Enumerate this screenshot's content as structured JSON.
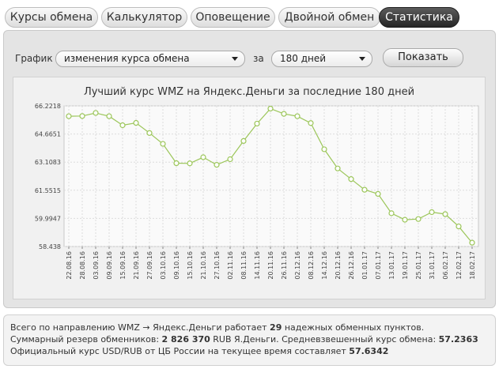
{
  "tabs": [
    {
      "label": "Курсы обмена",
      "active": false
    },
    {
      "label": "Калькулятор",
      "active": false
    },
    {
      "label": "Оповещение",
      "active": false
    },
    {
      "label": "Двойной обмен",
      "active": false
    },
    {
      "label": "Статистика",
      "active": true
    }
  ],
  "filters": {
    "graph_label": "График",
    "graph_type": "изменения курса обмена",
    "period_label": "за",
    "period": "180 дней",
    "show_button": "Показать"
  },
  "chart_data": {
    "type": "line",
    "title": "Лучший курс WMZ на Яндекс.Деньги за последние 180 дней",
    "ylim": [
      58.438,
      66.2218
    ],
    "yticks": [
      66.2218,
      64.6651,
      63.1083,
      61.5515,
      59.9947,
      58.438
    ],
    "ytick_labels": [
      "66.2218",
      "64.6651",
      "63.1083",
      "61.5515",
      "59.9947",
      "58.438"
    ],
    "xtick_labels": [
      "22.08.16",
      "28.08.16",
      "03.09.16",
      "09.09.16",
      "15.09.16",
      "21.09.16",
      "27.09.16",
      "03.10.16",
      "09.10.16",
      "15.10.16",
      "21.10.16",
      "27.10.16",
      "02.11.16",
      "08.11.16",
      "14.11.16",
      "20.11.16",
      "26.11.16",
      "02.12.16",
      "08.12.16",
      "14.12.16",
      "20.12.16",
      "26.12.16",
      "01.01.17",
      "07.01.17",
      "13.01.17",
      "19.01.17",
      "25.01.17",
      "31.01.17",
      "06.02.17",
      "12.02.17",
      "18.02.17"
    ],
    "values": [
      65.65,
      65.66,
      65.83,
      65.65,
      65.15,
      65.28,
      64.72,
      64.12,
      63.05,
      63.04,
      63.38,
      62.96,
      63.27,
      64.28,
      65.24,
      66.07,
      65.78,
      65.65,
      65.27,
      63.82,
      62.76,
      62.17,
      61.58,
      61.35,
      60.28,
      59.92,
      59.96,
      60.34,
      60.23,
      59.55,
      58.65
    ],
    "color": "#9cc65a",
    "grid": true
  },
  "info": {
    "line1_prefix": "Всего по направлению WMZ → Яндекс.Деньги работает ",
    "line1_count": "29",
    "line1_suffix": " надежных обменных пунктов.",
    "line2_prefix": "Суммарный резерв обменников: ",
    "line2_reserve": "2 826 370",
    "line2_mid": " RUB Я.Деньги. Средневзвешенный курс обмена: ",
    "line2_rate": "57.2363",
    "line3_prefix": "Официальный курс USD/RUB от ЦБ России на текущее время составляет ",
    "line3_rate": "57.6342"
  }
}
